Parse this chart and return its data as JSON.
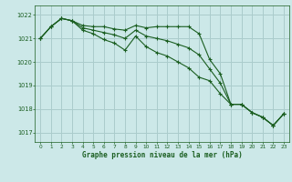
{
  "background_color": "#cce8e8",
  "grid_color": "#aacccc",
  "line_color": "#1a5e20",
  "marker_color": "#1a5e20",
  "title": "Graphe pression niveau de la mer (hPa)",
  "xlim": [
    -0.5,
    23.5
  ],
  "ylim": [
    1016.6,
    1022.4
  ],
  "yticks": [
    1017,
    1018,
    1019,
    1020,
    1021,
    1022
  ],
  "xticks": [
    0,
    1,
    2,
    3,
    4,
    5,
    6,
    7,
    8,
    9,
    10,
    11,
    12,
    13,
    14,
    15,
    16,
    17,
    18,
    19,
    20,
    21,
    22,
    23
  ],
  "series1": [
    1021.0,
    1021.5,
    1021.85,
    1021.75,
    1021.55,
    1021.5,
    1021.5,
    1021.4,
    1021.35,
    1021.55,
    1021.45,
    1021.5,
    1021.5,
    1021.5,
    1021.5,
    1021.2,
    1020.1,
    1019.5,
    1018.2,
    1018.2,
    1017.85,
    1017.65,
    1017.3,
    1017.8
  ],
  "series2": [
    1021.0,
    1021.5,
    1021.85,
    1021.75,
    1021.45,
    1021.35,
    1021.25,
    1021.15,
    1021.0,
    1021.35,
    1021.1,
    1021.0,
    1020.9,
    1020.75,
    1020.6,
    1020.3,
    1019.7,
    1019.1,
    1018.2,
    1018.2,
    1017.85,
    1017.65,
    1017.3,
    1017.8
  ],
  "series3": [
    1021.0,
    1021.5,
    1021.85,
    1021.75,
    1021.35,
    1021.2,
    1020.95,
    1020.8,
    1020.5,
    1021.1,
    1020.65,
    1020.4,
    1020.25,
    1020.0,
    1019.75,
    1019.35,
    1019.2,
    1018.65,
    1018.2,
    1018.2,
    1017.85,
    1017.65,
    1017.3,
    1017.8
  ]
}
